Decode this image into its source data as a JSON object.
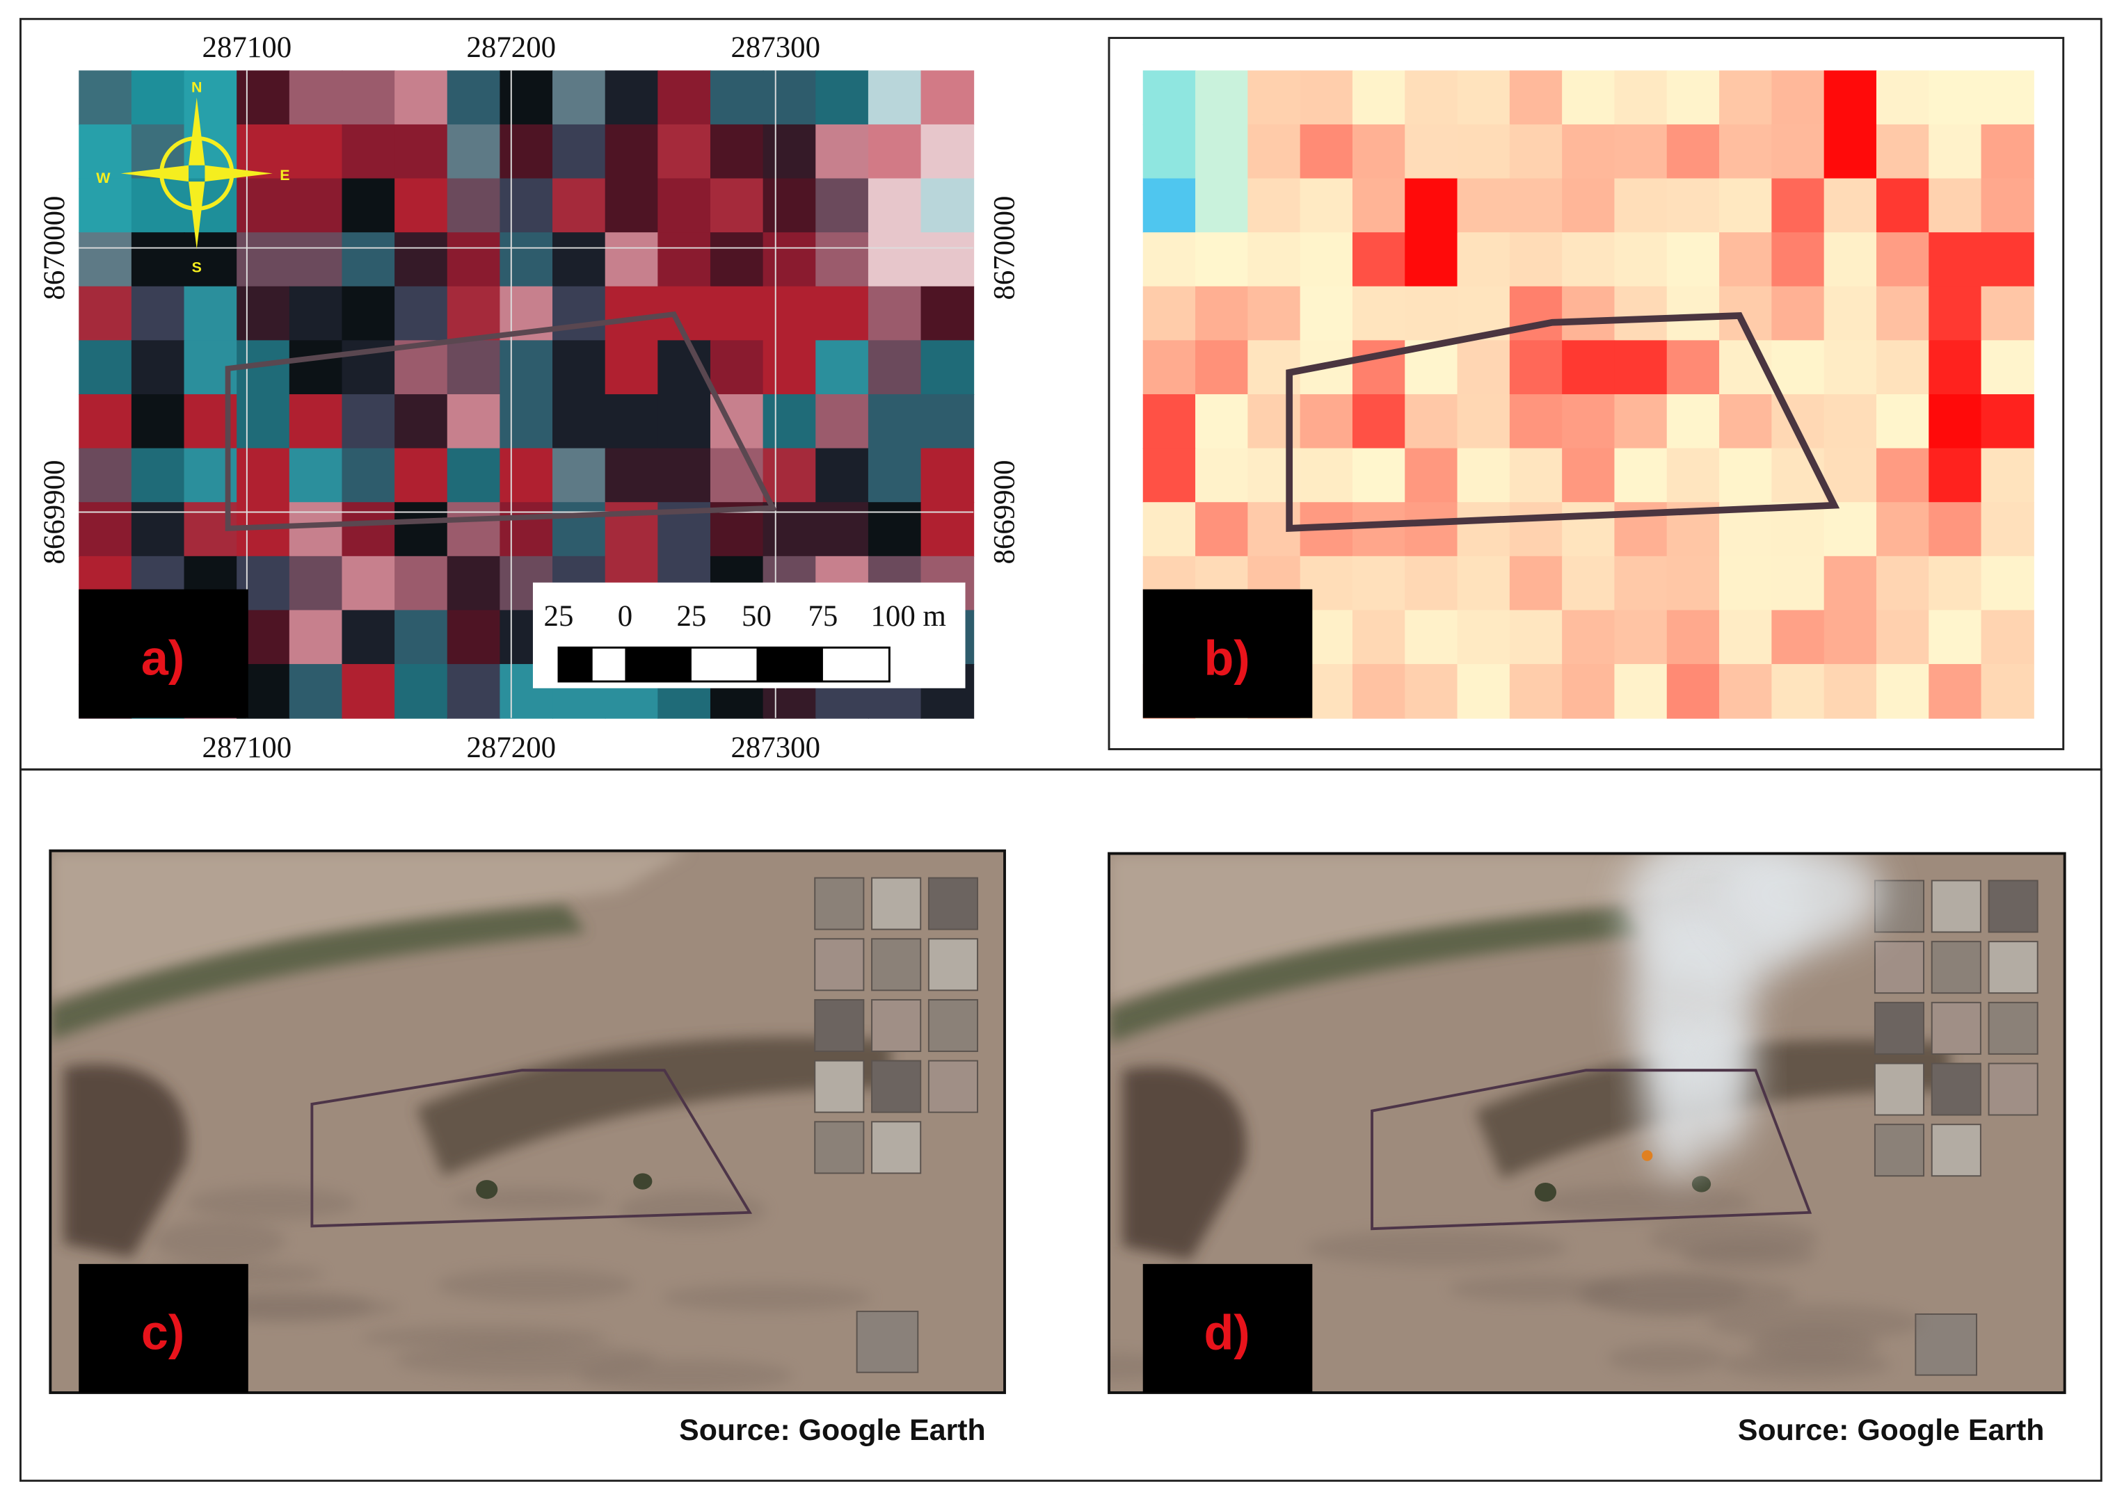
{
  "panels": [
    {
      "label": "a)"
    },
    {
      "label": "b)"
    },
    {
      "label": "c)"
    },
    {
      "label": "d)"
    }
  ],
  "coordinates": {
    "easting_top": [
      287100,
      287200,
      287300
    ],
    "easting_bottom": [
      287100,
      287200,
      287300
    ],
    "northing_left": [
      8670000,
      8669900
    ],
    "northing_right": [
      8670000,
      8669900
    ]
  },
  "scale_bar": [
    "25",
    "0",
    "25",
    "50",
    "75",
    "100 m"
  ],
  "compass": {
    "north": "N",
    "south": "S",
    "west": "W",
    "east": "E"
  },
  "sources": [
    "Source: Google Earth",
    "Source: Google Earth"
  ]
}
